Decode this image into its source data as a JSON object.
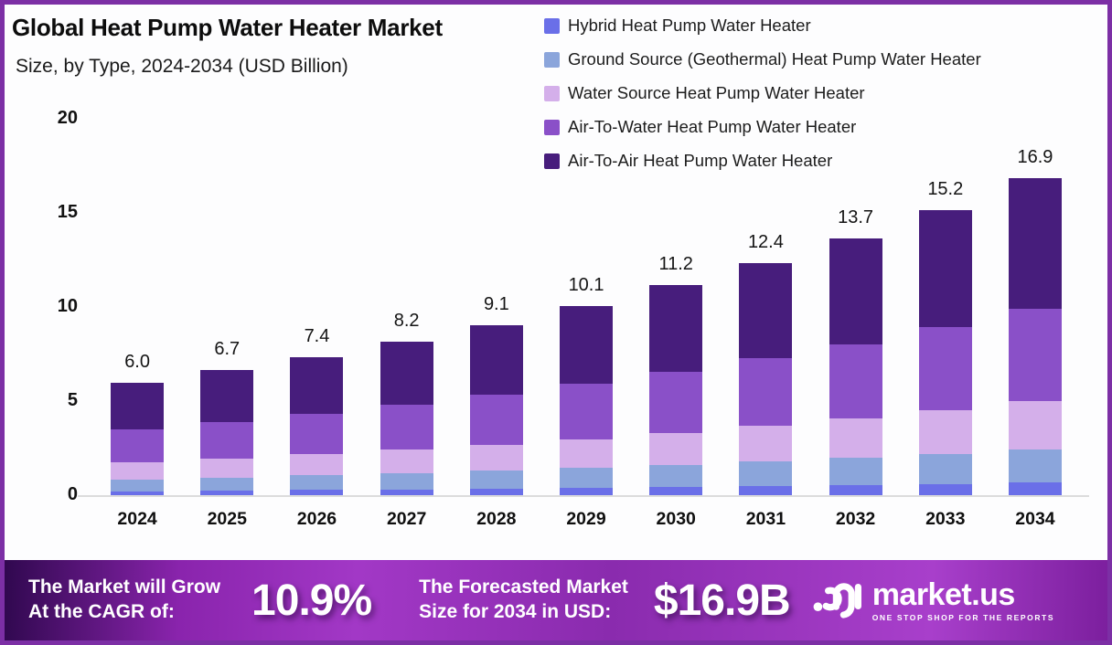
{
  "header": {
    "title": "Global Heat Pump Water Heater Market",
    "subtitle": "Size, by Type, 2024-2034 (USD Billion)"
  },
  "chart_data": {
    "type": "bar",
    "stacked": true,
    "categories": [
      "2024",
      "2025",
      "2026",
      "2027",
      "2028",
      "2029",
      "2030",
      "2031",
      "2032",
      "2033",
      "2034"
    ],
    "series": [
      {
        "name": "Hybrid Heat Pump Water Heater",
        "color": "#6a6fe8",
        "values": [
          0.26,
          0.29,
          0.32,
          0.35,
          0.39,
          0.43,
          0.48,
          0.54,
          0.59,
          0.65,
          0.73
        ]
      },
      {
        "name": "Ground Source (Geothermal) Heat Pump Water Heater",
        "color": "#8ba5db",
        "values": [
          0.63,
          0.7,
          0.78,
          0.86,
          0.96,
          1.06,
          1.18,
          1.3,
          1.44,
          1.6,
          1.77
        ]
      },
      {
        "name": "Water Source Heat Pump Water Heater",
        "color": "#d4afea",
        "values": [
          0.91,
          1.02,
          1.12,
          1.25,
          1.38,
          1.54,
          1.7,
          1.88,
          2.08,
          2.31,
          2.57
        ]
      },
      {
        "name": "Air-To-Water Heat Pump Water Heater",
        "color": "#8a50c8",
        "values": [
          1.74,
          1.94,
          2.15,
          2.38,
          2.64,
          2.93,
          3.25,
          3.6,
          3.97,
          4.41,
          4.9
        ]
      },
      {
        "name": "Air-To-Air Heat Pump Water Heater",
        "color": "#471d7c",
        "values": [
          2.46,
          2.75,
          3.03,
          3.36,
          3.73,
          4.14,
          4.59,
          5.08,
          5.62,
          6.23,
          6.93
        ]
      }
    ],
    "totals_labels": [
      "6.0",
      "6.7",
      "7.4",
      "8.2",
      "9.1",
      "10.1",
      "11.2",
      "12.4",
      "13.7",
      "15.2",
      "16.9"
    ],
    "y_ticks": [
      "0",
      "5",
      "10",
      "15",
      "20"
    ],
    "ylim": [
      0,
      20
    ],
    "grid": false,
    "legend_position": "top-right",
    "title": "Global Heat Pump Water Heater Market Size, by Type, 2024-2034 (USD Billion)",
    "xlabel": "",
    "ylabel": ""
  },
  "banner": {
    "cagr_line1": "The Market will Grow",
    "cagr_line2": "At the CAGR of:",
    "cagr_value": "10.9%",
    "forecast_line1": "The Forecasted Market",
    "forecast_line2": "Size for 2034 in USD:",
    "forecast_value": "$16.9B",
    "brand": "market.us",
    "tagline": "ONE STOP SHOP FOR THE REPORTS"
  },
  "colors": {
    "frame_border": "#7c2fa5",
    "axis_line": "#dcdcdc",
    "banner_gradient": [
      "#30084f",
      "#8a24ad",
      "#a238c6",
      "#8a2bae",
      "#a83fcb",
      "#7c1f9e"
    ]
  }
}
